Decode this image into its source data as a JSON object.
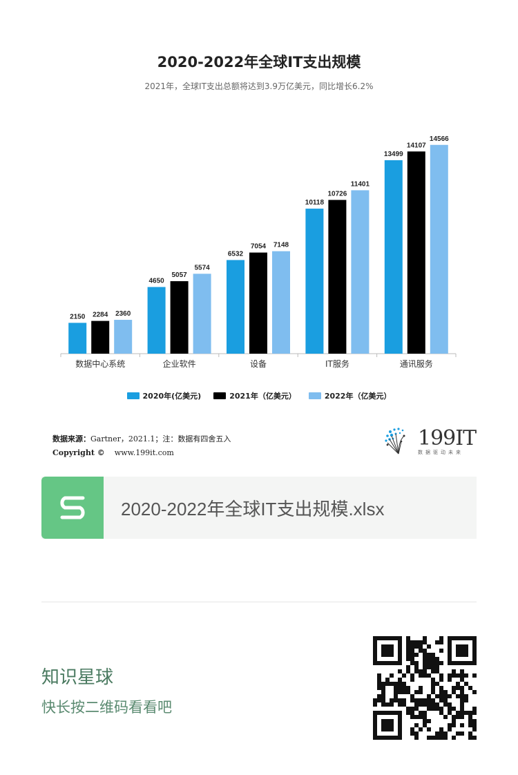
{
  "chart_data": {
    "type": "bar",
    "title": "2020-2022年全球IT支出规模",
    "subtitle": "2021年，全球IT支出总额将达到3.9万亿美元，同比增长6.2%",
    "categories": [
      "数据中心系统",
      "企业软件",
      "设备",
      "IT服务",
      "通讯服务"
    ],
    "series": [
      {
        "name": "2020年(亿美元)",
        "color": "#1a9ee0",
        "values": [
          2150,
          4650,
          6532,
          10118,
          13499
        ]
      },
      {
        "name": "2021年（亿美元）",
        "color": "#000000",
        "values": [
          2284,
          5057,
          7054,
          10726,
          14107
        ]
      },
      {
        "name": "2022年（亿美元）",
        "color": "#7fbdef",
        "values": [
          2360,
          5574,
          7148,
          11401,
          14566
        ]
      }
    ],
    "ylim": [
      0,
      16000
    ],
    "grid": false,
    "legend_position": "bottom"
  },
  "source": {
    "label": "数据来源：",
    "text": "Gartner，2021.1；注：数据有四舍五入",
    "copyright": "Copyright ©",
    "website": "www.199it.com"
  },
  "logo": {
    "name": "199IT",
    "tagline": "数据驱动未来"
  },
  "file": {
    "icon": "spreadsheet-s-icon",
    "name": "2020-2022年全球IT支出规模.xlsx",
    "accent": "#65c685"
  },
  "planet": {
    "name": "知识星球",
    "hint": "快长按二维码看看吧"
  }
}
